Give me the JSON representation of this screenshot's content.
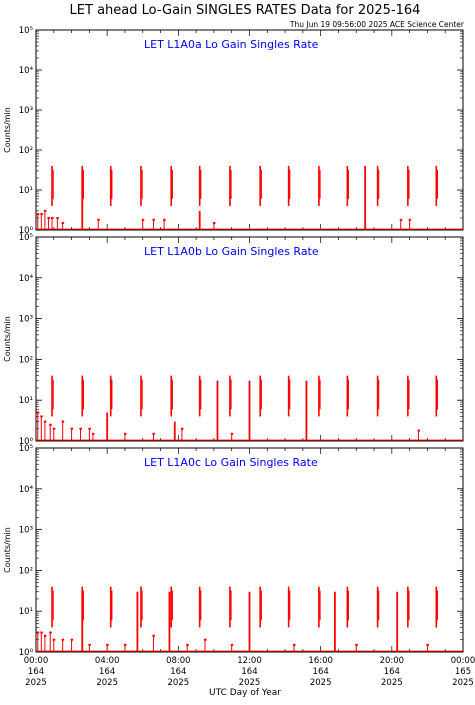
{
  "title": "LET ahead Lo-Gain SINGLES RATES Data for 2025-164",
  "timestamp": "Thu Jun 19 09:56:00 2025 ACE Science Center",
  "colors": {
    "data": "#ff0000",
    "panel_title": "#0000ff",
    "axis": "#000000"
  },
  "chart_data": [
    {
      "type": "scatter",
      "title": "LET L1A0a Lo Gain Singles Rate",
      "ylabel": "Counts/min",
      "yscale": "log",
      "ylim": [
        1,
        100000
      ],
      "ytick_labels": [
        "10⁰",
        "10¹",
        "10²",
        "10³",
        "10⁴",
        "10⁵"
      ],
      "xlim": [
        0,
        24
      ],
      "periodic_bursts": {
        "hours": [
          0.9,
          2.6,
          4.2,
          5.9,
          7.6,
          9.2,
          10.9,
          12.6,
          14.2,
          15.9,
          17.5,
          19.2,
          20.9,
          22.5
        ],
        "value": 40
      },
      "spikes": [
        [
          18.5,
          40
        ],
        [
          9.2,
          3
        ],
        [
          2.6,
          30
        ]
      ],
      "scatter_points": [
        [
          0.1,
          2.5
        ],
        [
          0.3,
          2.5
        ],
        [
          0.5,
          3.0
        ],
        [
          0.7,
          2.0
        ],
        [
          0.9,
          2.0
        ],
        [
          1.2,
          2.0
        ],
        [
          1.5,
          1.5
        ],
        [
          3.5,
          1.8
        ],
        [
          6.0,
          1.8
        ],
        [
          6.6,
          1.8
        ],
        [
          7.2,
          1.8
        ],
        [
          10.0,
          1.5
        ],
        [
          20.5,
          1.8
        ],
        [
          21.0,
          1.8
        ]
      ]
    },
    {
      "type": "scatter",
      "title": "LET L1A0b Lo Gain Singles Rate",
      "ylabel": "Counts/min",
      "yscale": "log",
      "ylim": [
        1,
        100000
      ],
      "ytick_labels": [
        "10⁰",
        "10¹",
        "10²",
        "10³",
        "10⁴",
        "10⁵"
      ],
      "xlim": [
        0,
        24
      ],
      "periodic_bursts": {
        "hours": [
          0.9,
          2.6,
          4.2,
          5.9,
          7.6,
          9.2,
          10.9,
          12.6,
          14.2,
          15.9,
          17.5,
          19.2,
          20.9,
          22.5
        ],
        "value": 40
      },
      "spikes": [
        [
          10.2,
          30
        ],
        [
          12.0,
          30
        ],
        [
          15.2,
          30
        ],
        [
          4.0,
          5
        ],
        [
          7.8,
          3
        ]
      ],
      "scatter_points": [
        [
          0.1,
          5
        ],
        [
          0.3,
          4
        ],
        [
          0.5,
          3
        ],
        [
          0.8,
          2.5
        ],
        [
          1.0,
          2
        ],
        [
          1.5,
          3
        ],
        [
          2.0,
          2
        ],
        [
          2.5,
          2
        ],
        [
          3.0,
          2
        ],
        [
          3.2,
          1.5
        ],
        [
          5.0,
          1.5
        ],
        [
          6.6,
          1.5
        ],
        [
          8.2,
          2
        ],
        [
          11.0,
          1.5
        ],
        [
          21.5,
          1.8
        ]
      ]
    },
    {
      "type": "scatter",
      "title": "LET L1A0c Lo Gain Singles Rate",
      "ylabel": "Counts/min",
      "yscale": "log",
      "ylim": [
        1,
        100000
      ],
      "ytick_labels": [
        "10⁰",
        "10¹",
        "10²",
        "10³",
        "10⁴",
        "10⁵"
      ],
      "xlim": [
        0,
        24
      ],
      "xlabel": "UTC Day of Year",
      "xticks": [
        {
          "hour": 0,
          "time": "00:00",
          "day": "164",
          "year": "2025"
        },
        {
          "hour": 4,
          "time": "04:00",
          "day": "164",
          "year": "2025"
        },
        {
          "hour": 8,
          "time": "08:00",
          "day": "164",
          "year": "2025"
        },
        {
          "hour": 12,
          "time": "12:00",
          "day": "164",
          "year": "2025"
        },
        {
          "hour": 16,
          "time": "16:00",
          "day": "164",
          "year": "2025"
        },
        {
          "hour": 20,
          "time": "20:00",
          "day": "164",
          "year": "2025"
        },
        {
          "hour": 24,
          "time": "00:00",
          "day": "165",
          "year": "2025"
        }
      ],
      "periodic_bursts": {
        "hours": [
          0.9,
          2.6,
          4.2,
          5.9,
          7.6,
          9.2,
          10.9,
          12.6,
          14.2,
          15.9,
          17.5,
          19.2,
          20.9,
          22.5
        ],
        "value": 40
      },
      "spikes": [
        [
          2.6,
          30
        ],
        [
          5.7,
          30
        ],
        [
          7.5,
          30
        ],
        [
          12.0,
          30
        ],
        [
          16.8,
          30
        ],
        [
          20.3,
          30
        ]
      ],
      "scatter_points": [
        [
          0.1,
          3
        ],
        [
          0.3,
          3
        ],
        [
          0.5,
          2.5
        ],
        [
          0.8,
          3
        ],
        [
          1.0,
          2
        ],
        [
          1.5,
          2
        ],
        [
          2.0,
          2
        ],
        [
          3.0,
          1.5
        ],
        [
          4.0,
          1.5
        ],
        [
          5.0,
          1.5
        ],
        [
          6.6,
          2.5
        ],
        [
          8.5,
          1.5
        ],
        [
          9.5,
          2
        ],
        [
          11.0,
          1.5
        ],
        [
          14.5,
          1.5
        ],
        [
          18.0,
          1.5
        ],
        [
          22.0,
          1.5
        ]
      ]
    }
  ]
}
